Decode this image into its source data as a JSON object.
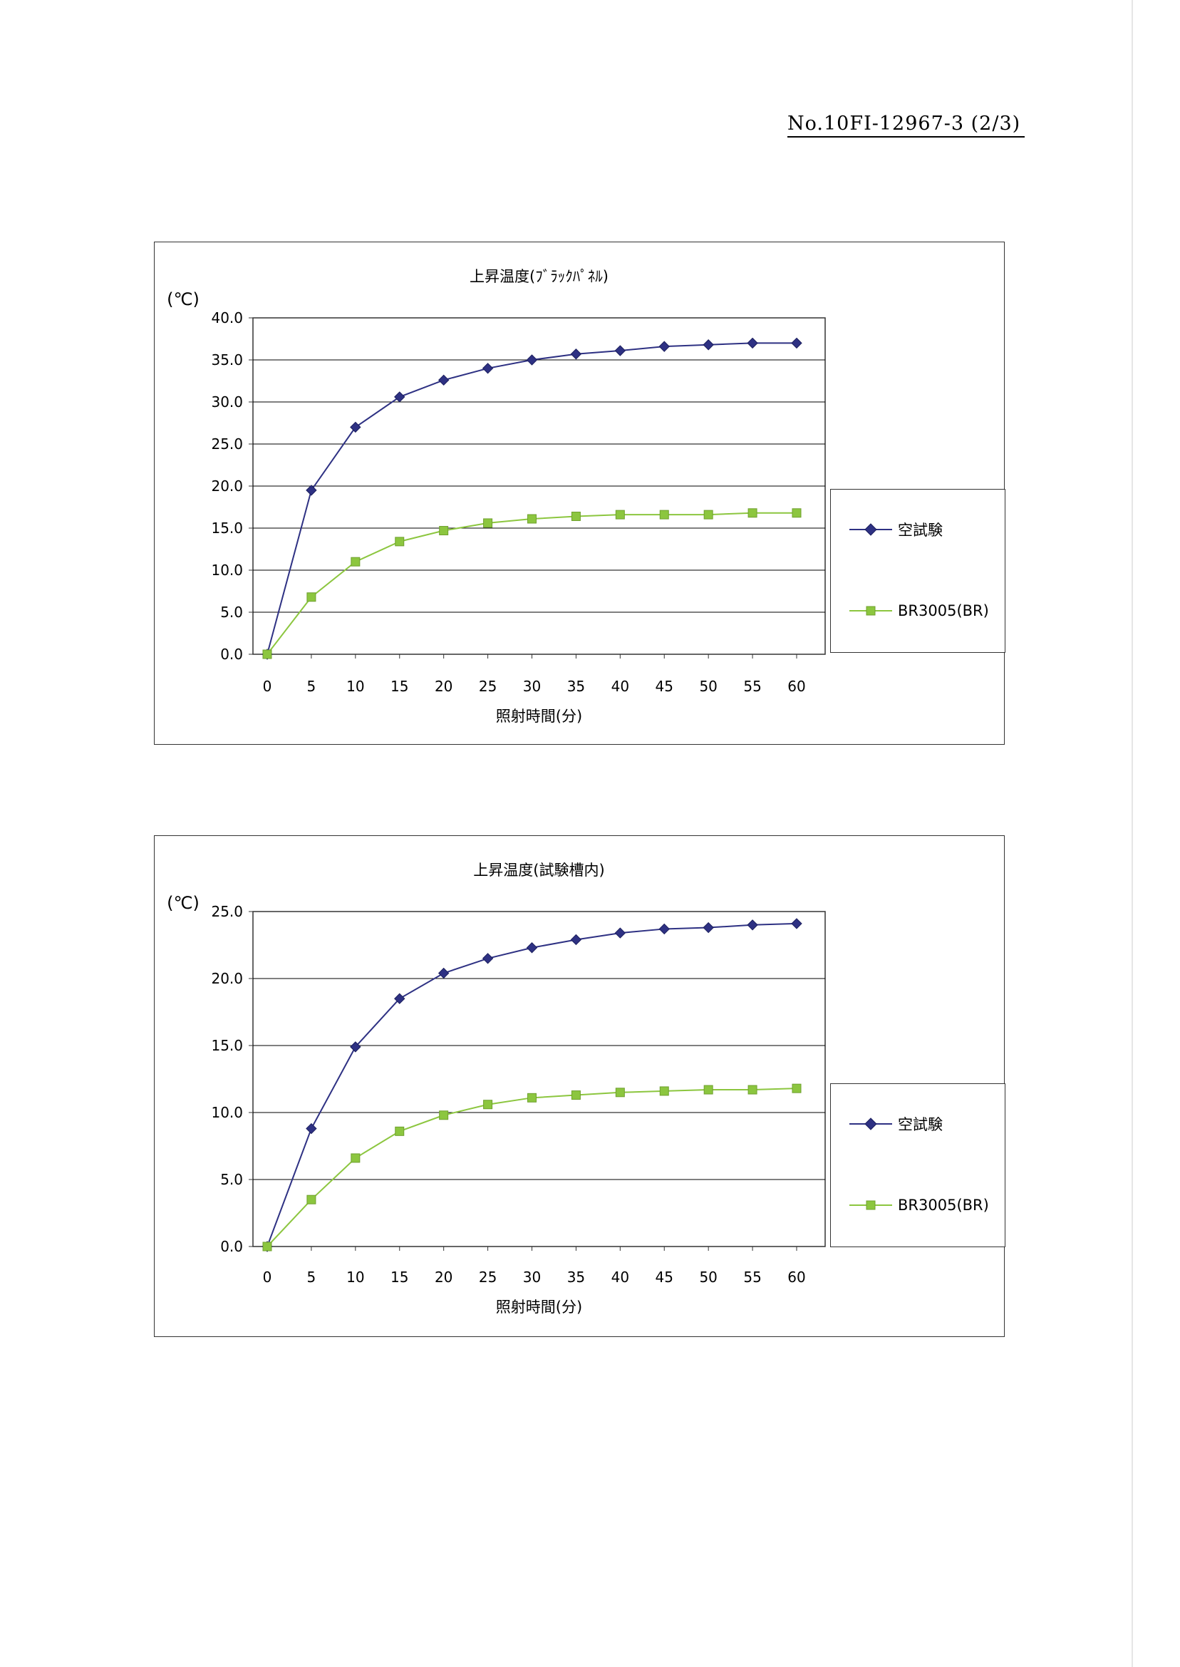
{
  "document": {
    "number": "No.10FI-12967-3 (2/3)"
  },
  "colors": {
    "series_blue": "#2e3183",
    "series_green": "#8cc63f",
    "grid": "#000000",
    "frame": "#333333"
  },
  "chart_data": [
    {
      "type": "line",
      "title": "上昇温度(ﾌﾞﾗｯｸﾊﾟﾈﾙ)",
      "unit_label": "(℃)",
      "xlabel": "照射時間(分)",
      "ylabel": "",
      "x": [
        0,
        5,
        10,
        15,
        20,
        25,
        30,
        35,
        40,
        45,
        50,
        55,
        60
      ],
      "ylim": [
        0,
        40
      ],
      "yticks": [
        "0.0",
        "5.0",
        "10.0",
        "15.0",
        "20.0",
        "25.0",
        "30.0",
        "35.0",
        "40.0"
      ],
      "grid": true,
      "legend_position": "right",
      "series": [
        {
          "name": "空試験",
          "marker": "diamond",
          "values": [
            0.0,
            19.5,
            27.0,
            30.6,
            32.6,
            34.0,
            35.0,
            35.7,
            36.1,
            36.6,
            36.8,
            37.0,
            37.0
          ]
        },
        {
          "name": "BR3005(BR)",
          "marker": "square",
          "values": [
            0.0,
            6.8,
            11.0,
            13.4,
            14.7,
            15.6,
            16.1,
            16.4,
            16.6,
            16.6,
            16.6,
            16.8,
            16.8
          ]
        }
      ]
    },
    {
      "type": "line",
      "title": "上昇温度(試験槽内)",
      "unit_label": "(℃)",
      "xlabel": "照射時間(分)",
      "ylabel": "",
      "x": [
        0,
        5,
        10,
        15,
        20,
        25,
        30,
        35,
        40,
        45,
        50,
        55,
        60
      ],
      "ylim": [
        0,
        25
      ],
      "yticks": [
        "0.0",
        "5.0",
        "10.0",
        "15.0",
        "20.0",
        "25.0"
      ],
      "grid": true,
      "legend_position": "right",
      "series": [
        {
          "name": "空試験",
          "marker": "diamond",
          "values": [
            0.0,
            8.8,
            14.9,
            18.5,
            20.4,
            21.5,
            22.3,
            22.9,
            23.4,
            23.7,
            23.8,
            24.0,
            24.1
          ]
        },
        {
          "name": "BR3005(BR)",
          "marker": "square",
          "values": [
            0.0,
            3.5,
            6.6,
            8.6,
            9.8,
            10.6,
            11.1,
            11.3,
            11.5,
            11.6,
            11.7,
            11.7,
            11.8
          ]
        }
      ]
    }
  ]
}
